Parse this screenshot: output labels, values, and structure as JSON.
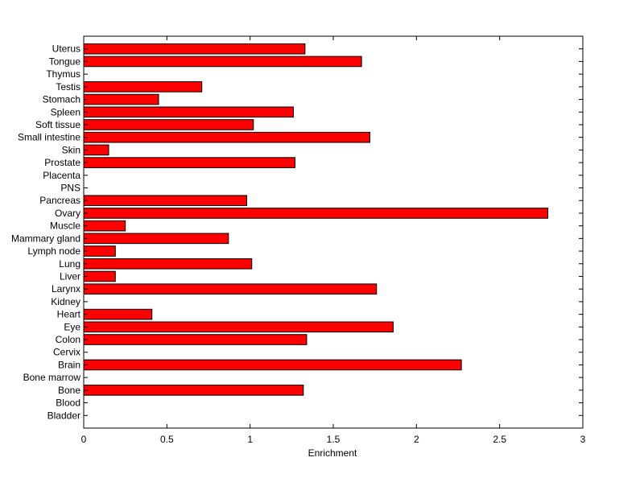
{
  "chart_data": {
    "type": "bar",
    "orientation": "horizontal",
    "title": "",
    "xlabel": "Enrichment",
    "ylabel": "",
    "xlim": [
      0,
      3
    ],
    "xticks": [
      0,
      0.5,
      1,
      1.5,
      2,
      2.5,
      3
    ],
    "xtick_labels": [
      "0",
      "0.5",
      "1",
      "1.5",
      "2",
      "2.5",
      "3"
    ],
    "grid": false,
    "bar_color": "#ff0000",
    "edge_color": "#000000",
    "categories": [
      "Bladder",
      "Blood",
      "Bone",
      "Bone marrow",
      "Brain",
      "Cervix",
      "Colon",
      "Eye",
      "Heart",
      "Kidney",
      "Larynx",
      "Liver",
      "Lung",
      "Lymph node",
      "Mammary gland",
      "Muscle",
      "Ovary",
      "Pancreas",
      "PNS",
      "Placenta",
      "Prostate",
      "Skin",
      "Small intestine",
      "Soft tissue",
      "Spleen",
      "Stomach",
      "Testis",
      "Thymus",
      "Tongue",
      "Uterus"
    ],
    "values": [
      0,
      0,
      1.32,
      0,
      2.27,
      0,
      1.34,
      1.86,
      0.41,
      0,
      1.76,
      0.19,
      1.01,
      0.19,
      0.87,
      0.25,
      2.79,
      0.98,
      0,
      0,
      1.27,
      0.15,
      1.72,
      1.02,
      1.26,
      0.45,
      0.71,
      0,
      1.67,
      1.33
    ]
  }
}
